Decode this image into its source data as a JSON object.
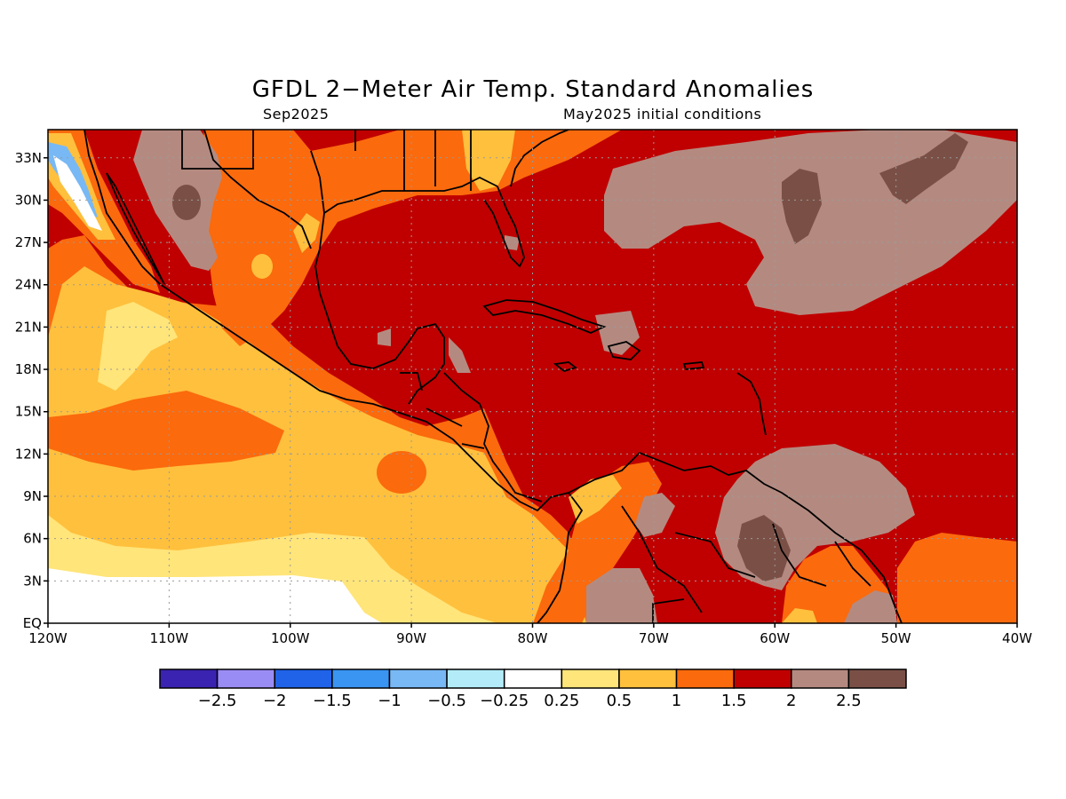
{
  "title": "GFDL 2−Meter Air Temp. Standard Anomalies",
  "subtitle_left": "Sep2025",
  "subtitle_right": "May2025 initial conditions",
  "map": {
    "lon_range": [
      -120,
      -40
    ],
    "lat_range": [
      0,
      35
    ],
    "grid": true,
    "lat_ticks": [
      {
        "value": 33,
        "label": "33N"
      },
      {
        "value": 30,
        "label": "30N"
      },
      {
        "value": 27,
        "label": "27N"
      },
      {
        "value": 24,
        "label": "24N"
      },
      {
        "value": 21,
        "label": "21N"
      },
      {
        "value": 18,
        "label": "18N"
      },
      {
        "value": 15,
        "label": "15N"
      },
      {
        "value": 12,
        "label": "12N"
      },
      {
        "value": 9,
        "label": "9N"
      },
      {
        "value": 6,
        "label": "6N"
      },
      {
        "value": 3,
        "label": "3N"
      },
      {
        "value": 0,
        "label": "EQ"
      }
    ],
    "lon_ticks": [
      {
        "value": -120,
        "label": "120W"
      },
      {
        "value": -110,
        "label": "110W"
      },
      {
        "value": -100,
        "label": "100W"
      },
      {
        "value": -90,
        "label": "90W"
      },
      {
        "value": -80,
        "label": "80W"
      },
      {
        "value": -70,
        "label": "70W"
      },
      {
        "value": -60,
        "label": "60W"
      },
      {
        "value": -50,
        "label": "50W"
      },
      {
        "value": -40,
        "label": "40W"
      }
    ]
  },
  "colorbar": {
    "colors": [
      "#3a23b0",
      "#9a8cf5",
      "#2063e8",
      "#3a94f2",
      "#78b8f4",
      "#b3ecf8",
      "#ffffff",
      "#ffe57a",
      "#ffc03d",
      "#fb6a0d",
      "#c00000",
      "#b48a80",
      "#7a5046"
    ],
    "labels": [
      "−2.5",
      "−2",
      "−1.5",
      "−1",
      "−0.5",
      "−0.25",
      "0.25",
      "0.5",
      "1",
      "1.5",
      "2",
      "2.5"
    ]
  }
}
